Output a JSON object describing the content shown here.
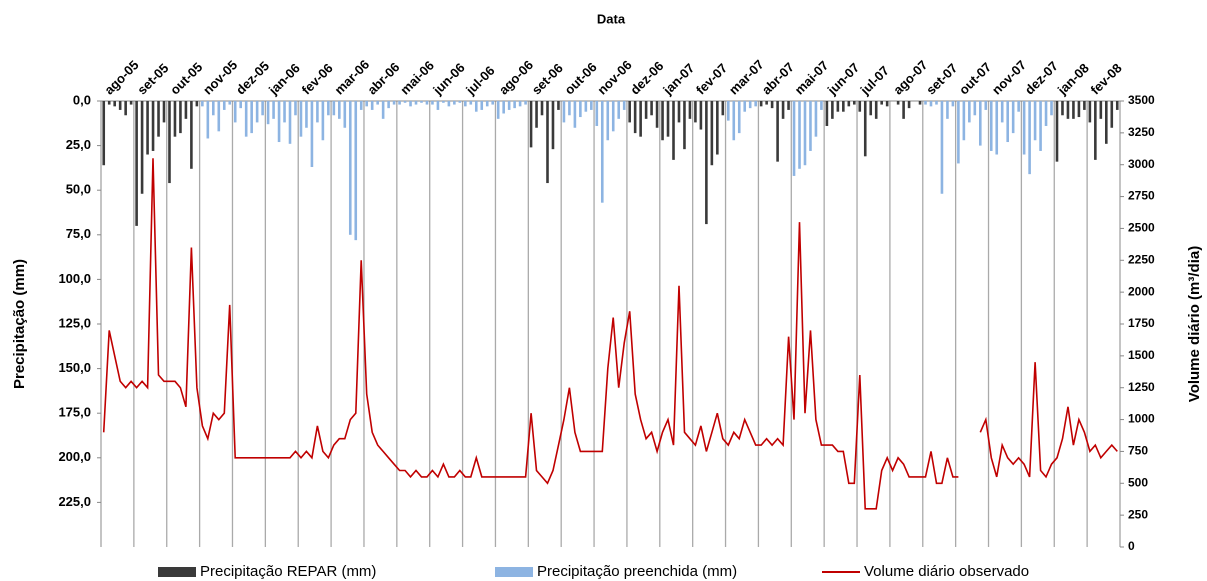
{
  "chart_data": {
    "type": "bar_line",
    "x_label": "Data",
    "y_label": "Precipitação (mm)",
    "y2_label": "Volume diário (m³/dia)",
    "categories": [
      "ago-05",
      "set-05",
      "out-05",
      "nov-05",
      "dez-05",
      "jan-06",
      "fev-06",
      "mar-06",
      "abr-06",
      "mai-06",
      "jun-06",
      "jul-06",
      "ago-06",
      "set-06",
      "out-06",
      "nov-06",
      "dez-06",
      "jan-07",
      "fev-07",
      "mar-07",
      "abr-07",
      "mai-07",
      "jun-07",
      "jul-07",
      "ago-07",
      "set-07",
      "out-07",
      "nov-07",
      "dez-07",
      "jan-08",
      "fev-08"
    ],
    "ylim": [
      0,
      250
    ],
    "y_inverted": true,
    "yticks": [
      {
        "value": 0,
        "label": "0,0"
      },
      {
        "value": 25,
        "label": "25,0"
      },
      {
        "value": 50,
        "label": "50,0"
      },
      {
        "value": 75,
        "label": "75,0"
      },
      {
        "value": 100,
        "label": "100,0"
      },
      {
        "value": 125,
        "label": "125,0"
      },
      {
        "value": 150,
        "label": "150,0"
      },
      {
        "value": 175,
        "label": "175,0"
      },
      {
        "value": 200,
        "label": "200,0"
      },
      {
        "value": 225,
        "label": "225,0"
      }
    ],
    "y2lim": [
      0,
      3500
    ],
    "y2ticks": [
      0,
      250,
      500,
      750,
      1000,
      1250,
      1500,
      1750,
      2000,
      2250,
      2500,
      2750,
      3000,
      3250,
      3500
    ],
    "series": [
      {
        "name": "Precipitação REPAR (mm)",
        "type": "bar",
        "color": "#3a3a3a",
        "values": [
          [
            36,
            2,
            3,
            5,
            8,
            2
          ],
          [
            70,
            52,
            30,
            28,
            20,
            12
          ],
          [
            46,
            20,
            18,
            10,
            38,
            3
          ],
          [],
          [],
          [],
          [],
          [],
          [],
          [],
          [],
          [],
          [],
          [
            26,
            15,
            8,
            46,
            27,
            5
          ],
          [],
          [],
          [
            12,
            18,
            20,
            10,
            8,
            15
          ],
          [
            22,
            20,
            33,
            12,
            27,
            10
          ],
          [
            12,
            16,
            69,
            36,
            30,
            8
          ],
          [],
          [
            3,
            2,
            4,
            34,
            10,
            5
          ],
          [],
          [
            14,
            10,
            6,
            6,
            3,
            2
          ],
          [
            6,
            31,
            8,
            10,
            2,
            3
          ],
          [
            0,
            2,
            10,
            4,
            0,
            2
          ],
          [],
          [],
          [],
          [],
          [
            34,
            8,
            10,
            10,
            9,
            5
          ],
          [
            12,
            33,
            10,
            24,
            15,
            5
          ]
        ]
      },
      {
        "name": "Precipitação preenchida (mm)",
        "type": "bar",
        "color": "#8db4e2",
        "values": [
          [],
          [],
          [],
          [
            3,
            21,
            8,
            17,
            5,
            2
          ],
          [
            12,
            4,
            20,
            18,
            12,
            8
          ],
          [
            13,
            10,
            23,
            12,
            24,
            8
          ],
          [
            20,
            15,
            37,
            12,
            22,
            8
          ],
          [
            8,
            10,
            15,
            75,
            78,
            5
          ],
          [
            3,
            5,
            2,
            10,
            4,
            2
          ],
          [
            2,
            1,
            3,
            2,
            1,
            2
          ],
          [
            2,
            5,
            1,
            3,
            2,
            1
          ],
          [
            3,
            2,
            6,
            5,
            3,
            2
          ],
          [
            10,
            7,
            5,
            4,
            3,
            2
          ],
          [],
          [
            12,
            8,
            15,
            9,
            6,
            5
          ],
          [
            14,
            57,
            22,
            17,
            10,
            5
          ],
          [],
          [],
          [],
          [
            11,
            22,
            18,
            6,
            4,
            3
          ],
          [],
          [
            42,
            38,
            36,
            28,
            20,
            5
          ],
          [],
          [],
          [],
          [
            2,
            3,
            2,
            52,
            10,
            3
          ],
          [
            35,
            22,
            12,
            8,
            25,
            5
          ],
          [
            28,
            30,
            12,
            23,
            18,
            6
          ],
          [
            30,
            41,
            22,
            28,
            14,
            8
          ],
          [],
          []
        ]
      },
      {
        "name": "Volume diário observado",
        "type": "line",
        "axis": "y2",
        "color": "#c00000",
        "values": [
          [
            900,
            1700,
            1500,
            1300,
            1250,
            1300
          ],
          [
            1250,
            1300,
            1250,
            3050,
            1350,
            1300
          ],
          [
            1300,
            1300,
            1250,
            1100,
            2350,
            1250
          ],
          [
            950,
            850,
            1050,
            1000,
            1050,
            1900
          ],
          [
            700,
            700,
            700,
            700,
            700,
            700
          ],
          [
            700,
            700,
            700,
            700,
            700,
            750
          ],
          [
            700,
            750,
            700,
            950,
            750,
            700
          ],
          [
            800,
            850,
            850,
            1000,
            1050,
            2250
          ],
          [
            1200,
            900,
            800,
            750,
            700,
            650
          ],
          [
            600,
            600,
            550,
            600,
            550,
            550
          ],
          [
            600,
            550,
            650,
            550,
            550,
            600
          ],
          [
            550,
            550,
            700,
            550,
            550,
            550
          ],
          [
            550,
            550,
            550,
            550,
            550,
            550
          ],
          [
            1050,
            600,
            550,
            500,
            600,
            800
          ],
          [
            1000,
            1250,
            900,
            750,
            750,
            750
          ],
          [
            750,
            750,
            1400,
            1800,
            1250,
            1600
          ],
          [
            1850,
            1200,
            1000,
            850,
            900,
            750
          ],
          [
            900,
            1000,
            800,
            2050,
            900,
            850
          ],
          [
            800,
            950,
            750,
            900,
            1050,
            850
          ],
          [
            800,
            900,
            850,
            1000,
            900,
            800
          ],
          [
            800,
            850,
            800,
            850,
            800,
            1650
          ],
          [
            1000,
            2550,
            1050,
            1700,
            1000,
            800
          ],
          [
            800,
            800,
            750,
            750,
            500,
            500
          ],
          [
            1350,
            300,
            300,
            300,
            600,
            700
          ],
          [
            600,
            700,
            650,
            550,
            550,
            550
          ],
          [
            550,
            750,
            500,
            500,
            700,
            550
          ],
          [
            550,
            null,
            null,
            null,
            900,
            1000
          ],
          [
            700,
            550,
            800,
            700,
            650,
            700
          ],
          [
            650,
            550,
            1450,
            600,
            550,
            650
          ],
          [
            700,
            850,
            1100,
            800,
            1000,
            900
          ],
          [
            750,
            800,
            700,
            750,
            800,
            750
          ]
        ]
      }
    ]
  }
}
